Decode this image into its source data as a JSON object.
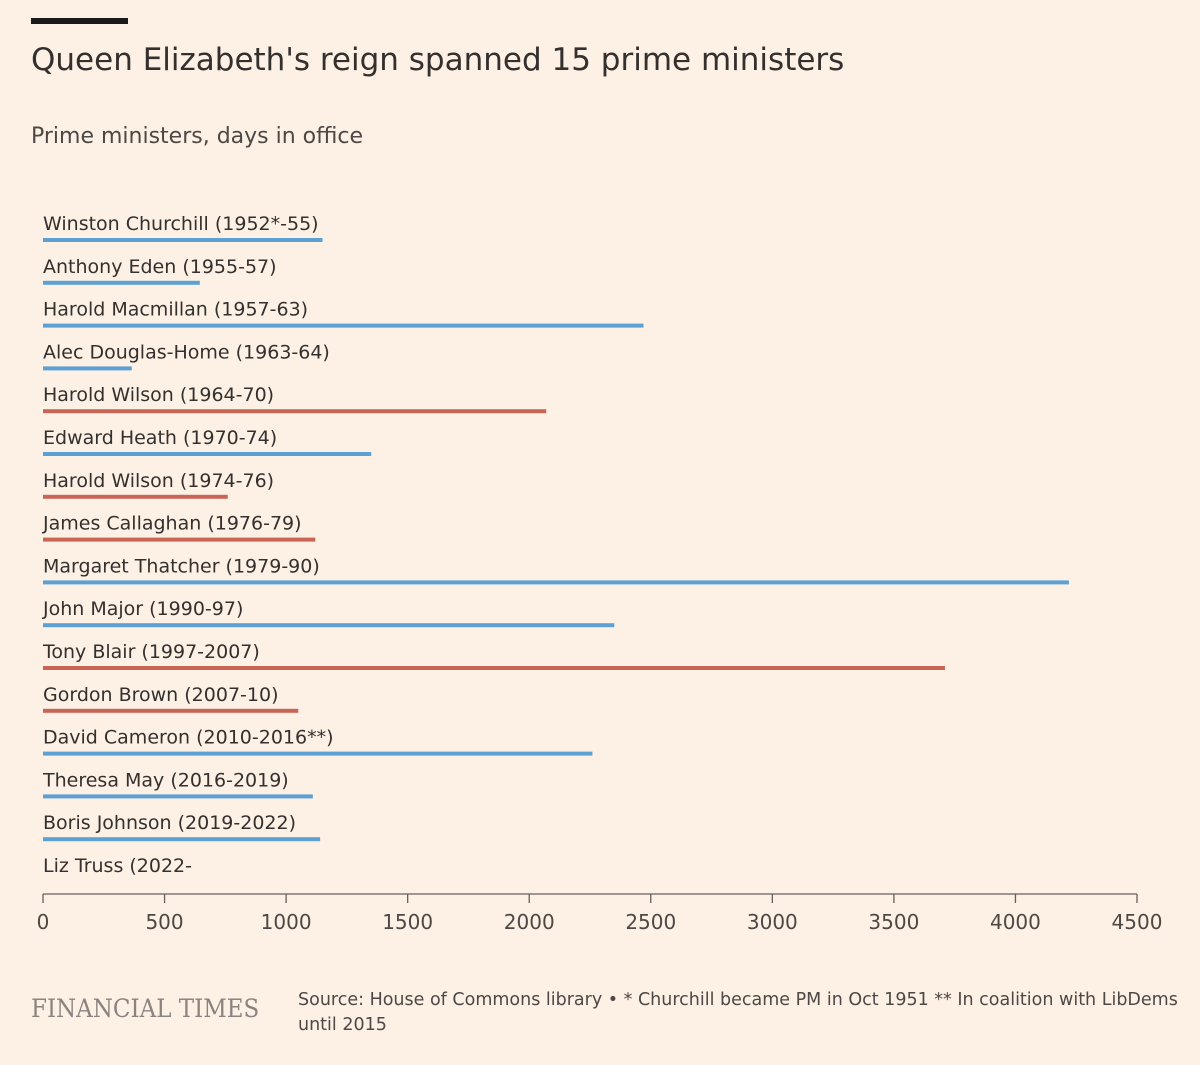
{
  "title": "Queen Elizabeth's reign spanned 15 prime ministers",
  "subtitle": "Prime ministers, days in office",
  "colors": {
    "conservative": "#5da0d3",
    "labour": "#c86555",
    "axis": "#66605c",
    "background": "#fdf0e5"
  },
  "chart_data": {
    "type": "bar",
    "orientation": "horizontal",
    "categories": [
      "Winston Churchill (1952*-55)",
      "Anthony Eden (1955-57)",
      "Harold Macmillan (1957-63)",
      "Alec Douglas-Home (1963-64)",
      "Harold Wilson (1964-70)",
      "Edward Heath (1970-74)",
      "Harold Wilson (1974-76)",
      "James Callaghan (1976-79)",
      "Margaret Thatcher (1979-90)",
      "John Major (1990-97)",
      "Tony Blair (1997-2007)",
      "Gordon Brown (2007-10)",
      "David Cameron (2010-2016**)",
      "Theresa May (2016-2019)",
      "Boris Johnson (2019-2022)",
      "Liz Truss (2022-"
    ],
    "values": [
      1150,
      645,
      2470,
      365,
      2070,
      1350,
      760,
      1120,
      4220,
      2350,
      3710,
      1050,
      2260,
      1110,
      1140,
      0
    ],
    "party": [
      "conservative",
      "conservative",
      "conservative",
      "conservative",
      "labour",
      "conservative",
      "labour",
      "labour",
      "conservative",
      "conservative",
      "labour",
      "labour",
      "conservative",
      "conservative",
      "conservative",
      "conservative"
    ],
    "xlim": [
      0,
      4500
    ],
    "xticks": [
      0,
      500,
      1000,
      1500,
      2000,
      2500,
      3000,
      3500,
      4000,
      4500
    ],
    "xlabel": "",
    "ylabel": "",
    "grid": false
  },
  "footer": {
    "logo": "FINANCIAL TIMES",
    "source": "Source: House of Commons library • * Churchill became PM in Oct 1951 ** In coalition with LibDems until 2015"
  }
}
